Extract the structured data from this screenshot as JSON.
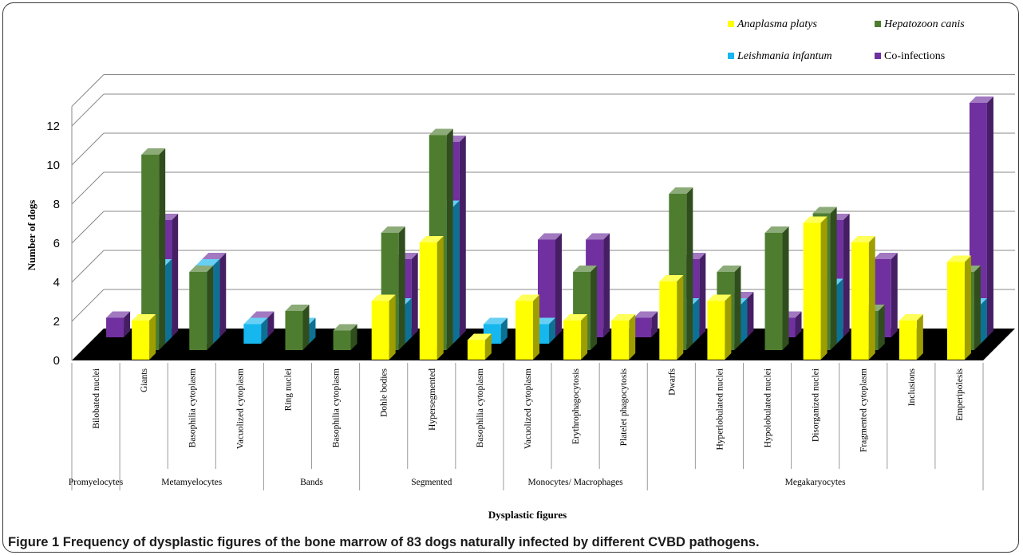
{
  "caption": "Figure 1 Frequency of dysplastic figures of the bone marrow of 83 dogs naturally infected by different CVBD pathogens.",
  "chart_data": {
    "type": "bar",
    "title": "",
    "xlabel": "Dysplastic figures",
    "ylabel": "Number of dogs",
    "ylim": [
      0,
      12
    ],
    "yticks": [
      0,
      2,
      4,
      6,
      8,
      10,
      12
    ],
    "grid": true,
    "legend_position": "top-right",
    "categories": [
      "Bilobated nuclei",
      "Giants",
      "Basophilia cytoplasm",
      "Vacuolized cytoplasm",
      "Ring nuclei",
      "Basophilia cytoplasm",
      "Dohle bodies",
      "Hypersegmented",
      "Basophilia cytoplasm",
      "Vacuolized cytoplasm",
      "Erythrophagocytosis",
      "Platelet phagocytosis",
      "Dwarfs",
      "Hyperlobulated nuclei",
      "Hypolobulated nuclei",
      "Disorganized nuclei",
      "Fragmented cytoplasm",
      "Inclusions",
      "Emperipolesis"
    ],
    "groups": [
      {
        "label": "Promyelocytes",
        "span": 1
      },
      {
        "label": "Metamyelocytes",
        "span": 3
      },
      {
        "label": "Bands",
        "span": 2
      },
      {
        "label": "Segmented",
        "span": 3
      },
      {
        "label": "Monocytes/ Macrophages",
        "span": 3
      },
      {
        "label": "Megakaryocytes",
        "span": 7
      }
    ],
    "series": [
      {
        "name": "Anaplasma platys",
        "color": "#ffff00",
        "italic": true,
        "values": [
          0,
          2,
          0,
          0,
          0,
          0,
          3,
          6,
          1,
          3,
          2,
          2,
          4,
          3,
          0,
          7,
          6,
          2,
          5
        ]
      },
      {
        "name": "Hepatozoon canis",
        "color": "#4e7d2f",
        "italic": true,
        "values": [
          0,
          10,
          4,
          0,
          2,
          1,
          6,
          11,
          0,
          0,
          4,
          0,
          8,
          4,
          6,
          7,
          2,
          0,
          4
        ]
      },
      {
        "name": "Leishmania infantum",
        "color": "#15b7ee",
        "italic": true,
        "values": [
          0,
          4,
          4,
          1,
          1,
          0,
          2,
          7,
          1,
          1,
          0,
          0,
          2,
          2,
          0,
          3,
          0,
          0,
          2
        ]
      },
      {
        "name": "Co-infections",
        "color": "#7030a0",
        "italic": false,
        "values": [
          1,
          6,
          4,
          1,
          0,
          0,
          4,
          10,
          0,
          5,
          5,
          1,
          4,
          2,
          1,
          6,
          4,
          0,
          12
        ]
      }
    ]
  }
}
